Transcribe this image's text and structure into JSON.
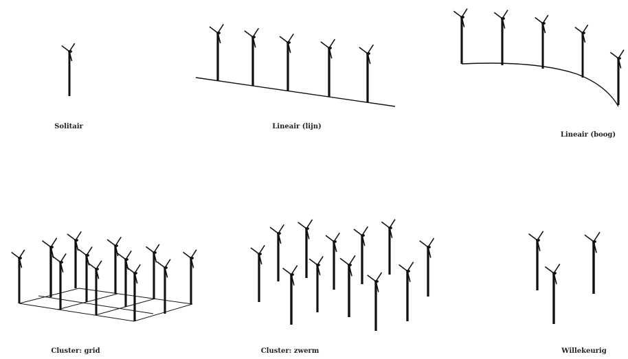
{
  "panels": [
    {
      "label": "Solitair"
    },
    {
      "label": "Lineair (lijn)"
    },
    {
      "label": "Lineair (boog)"
    },
    {
      "label": "Cluster: grid"
    },
    {
      "label": "Cluster: zwerm"
    },
    {
      "label": "Willekeurig"
    }
  ]
}
